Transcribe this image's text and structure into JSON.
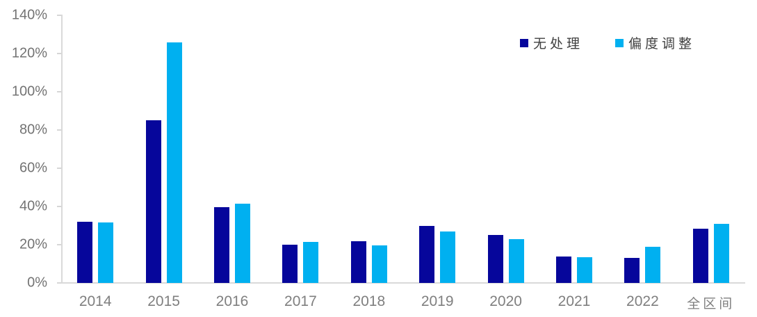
{
  "chart_data": {
    "type": "bar",
    "title": "",
    "categories": [
      "2014",
      "2015",
      "2016",
      "2017",
      "2018",
      "2019",
      "2020",
      "2021",
      "2022",
      "全区间"
    ],
    "series": [
      {
        "name": "无处理",
        "color": "#06069b",
        "values": [
          32,
          85,
          39.5,
          20,
          22,
          30,
          25,
          14,
          13,
          28.5
        ]
      },
      {
        "name": "偏度调整",
        "color": "#00b0f0",
        "values": [
          31.5,
          126,
          41.5,
          21.5,
          19.5,
          27,
          23,
          13.5,
          19,
          31
        ]
      }
    ],
    "xlabel": "",
    "ylabel": "",
    "ylim": [
      0,
      140
    ],
    "y_tick_step": 20,
    "y_tick_labels": [
      "0%",
      "20%",
      "40%",
      "60%",
      "80%",
      "100%",
      "120%",
      "140%"
    ],
    "grid": false,
    "legend_position": "top-right"
  },
  "colors": {
    "axis_line": "#d9d9d9",
    "tick_label": "#737373",
    "category_label": "#7f7f7f",
    "legend_text": "#3f3f3f"
  },
  "legend": {
    "items": [
      {
        "label": "无处理",
        "color": "#06069b"
      },
      {
        "label": "偏度调整",
        "color": "#00b0f0"
      }
    ]
  }
}
